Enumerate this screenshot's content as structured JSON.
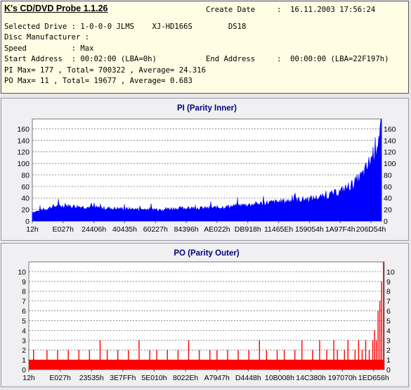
{
  "info": {
    "app_title": "K's CD/DVD Probe 1.1.26",
    "create_date_label": "Create Date",
    "create_date_value": ":  16.11.2003 17:56:24",
    "drive_line": "Selected Drive : 1-0-0-0 JLMS    XJ-HD166S        DS18",
    "manufacturer_line": "Disc Manufacturer :",
    "speed_line": "Speed          : Max",
    "start_line": "Start Address  : 00:02:00 (LBA=0h)",
    "end_label": "End Address",
    "end_value": ":  00:00:00 (LBA=22F197h)",
    "pi_summary": "PI Max= 177 , Total= 700322 , Average= 24.316",
    "po_summary": "PO Max= 11 , Total= 19677 , Average= 0.683"
  },
  "colors": {
    "pi_series": "#0000ff",
    "po_series": "#ff0000",
    "plot_bg": "#ffffff",
    "title": "#000080"
  },
  "chart_data": [
    {
      "type": "area",
      "title": "PI (Parity Inner)",
      "x_tick_labels": [
        "12h",
        "E027h",
        "24406h",
        "40435h",
        "60227h",
        "84396h",
        "AE022h",
        "DB918h",
        "11465Eh",
        "159054h",
        "1A97F4h",
        "206D54h"
      ],
      "y_ticks": [
        0,
        20,
        40,
        60,
        80,
        100,
        120,
        140,
        160
      ],
      "ylim": [
        0,
        177
      ],
      "grid": true,
      "envelope": {
        "x": [
          0,
          0.03,
          0.06,
          0.1,
          0.15,
          0.2,
          0.25,
          0.3,
          0.35,
          0.4,
          0.45,
          0.5,
          0.55,
          0.6,
          0.65,
          0.7,
          0.75,
          0.8,
          0.84,
          0.88,
          0.92,
          0.95,
          0.97,
          0.99,
          1.0
        ],
        "y": [
          16,
          19,
          26,
          27,
          25,
          23,
          22,
          21,
          21,
          22,
          23,
          23,
          25,
          28,
          31,
          34,
          37,
          40,
          44,
          52,
          66,
          85,
          110,
          145,
          177
        ]
      }
    },
    {
      "type": "bar",
      "title": "PO (Parity Outer)",
      "x_tick_labels": [
        "12h",
        "E027h",
        "23535h",
        "3E7FFh",
        "5E010h",
        "8022Eh",
        "A7947h",
        "D4448h",
        "10B008h",
        "14C380h",
        "197070h",
        "1ED656h"
      ],
      "y_ticks": [
        0,
        1,
        2,
        3,
        4,
        5,
        6,
        7,
        8,
        9,
        10
      ],
      "ylim": [
        0,
        11
      ],
      "grid": true,
      "baseline": 1,
      "spikes": {
        "x": [
          0.012,
          0.05,
          0.08,
          0.11,
          0.14,
          0.17,
          0.2,
          0.22,
          0.25,
          0.28,
          0.31,
          0.34,
          0.36,
          0.39,
          0.42,
          0.45,
          0.48,
          0.51,
          0.53,
          0.56,
          0.59,
          0.62,
          0.65,
          0.67,
          0.7,
          0.72,
          0.75,
          0.77,
          0.8,
          0.82,
          0.84,
          0.86,
          0.87,
          0.89,
          0.9,
          0.92,
          0.93,
          0.94,
          0.95,
          0.96,
          0.97,
          0.975,
          0.98,
          0.985,
          0.99,
          0.995,
          1.0
        ],
        "y": [
          2,
          2,
          2,
          2,
          2,
          2,
          3,
          2,
          2,
          2,
          3,
          2,
          2,
          2,
          2,
          3,
          2,
          2,
          2,
          2,
          2,
          2,
          3,
          2,
          2,
          2,
          2,
          3,
          2,
          3,
          2,
          3,
          2,
          2,
          3,
          2,
          3,
          2,
          3,
          2,
          3,
          4,
          3,
          6,
          7,
          9,
          11
        ]
      }
    }
  ]
}
